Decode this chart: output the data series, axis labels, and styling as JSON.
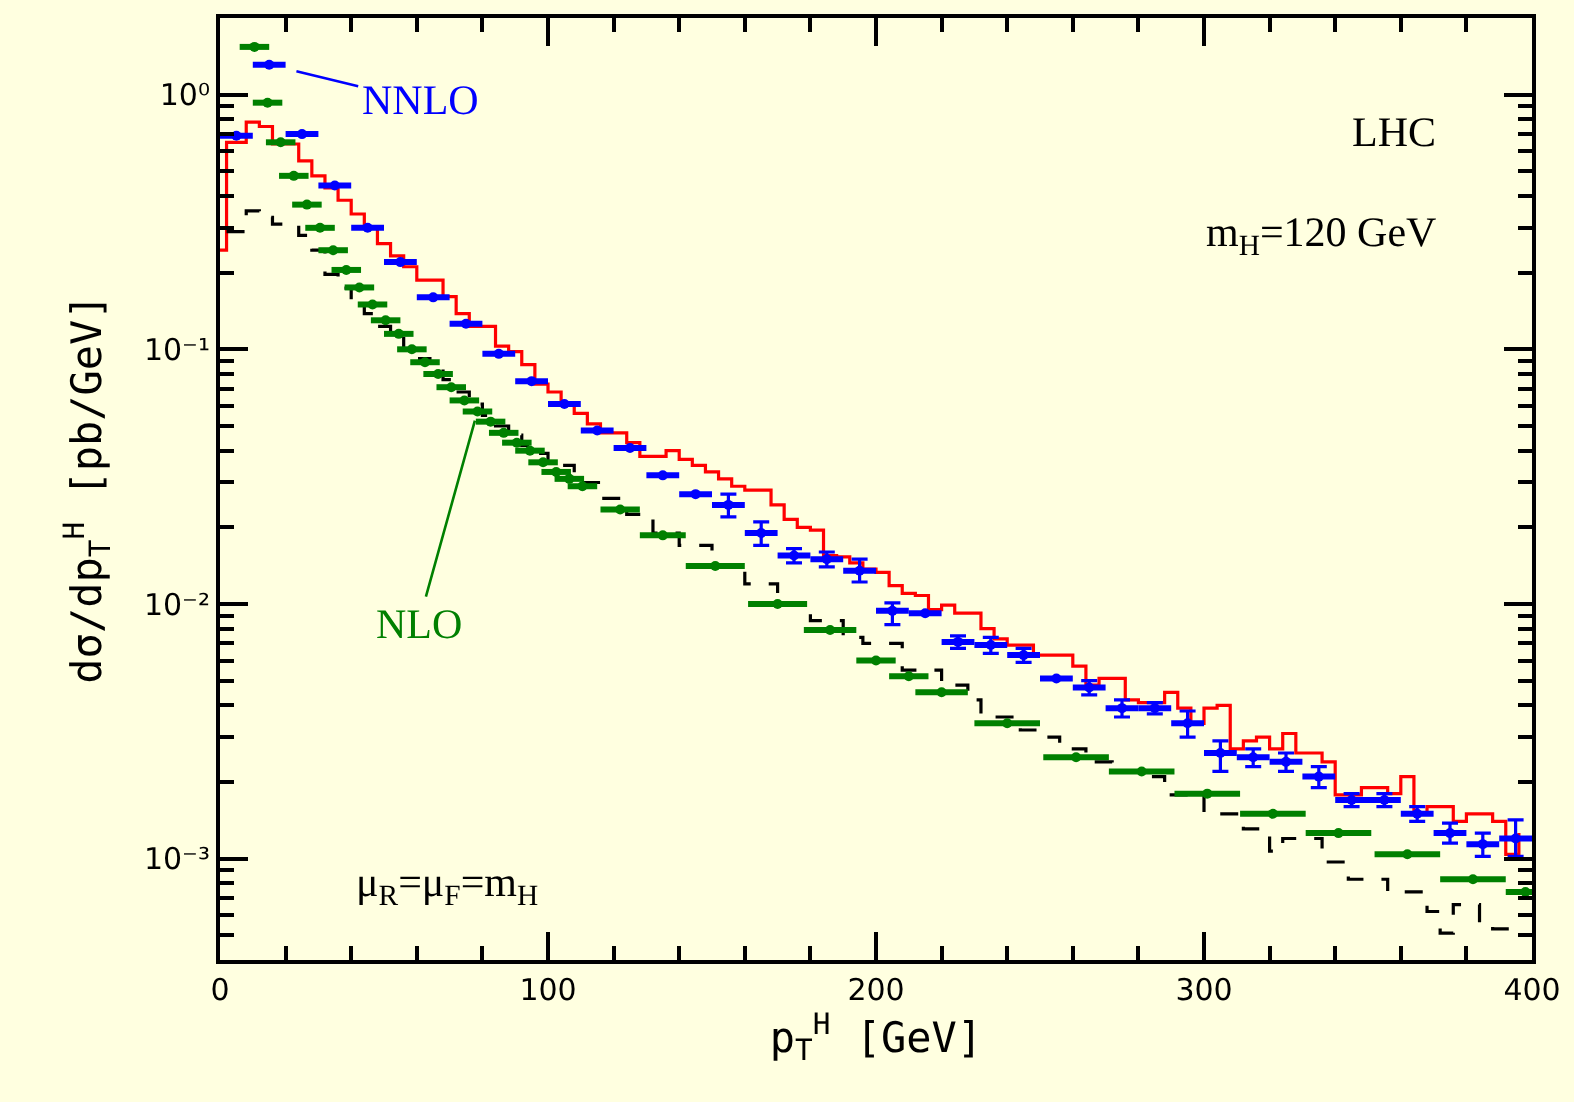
{
  "chart_data": {
    "type": "step",
    "xlabel": "p$_{T}$$^{H}$ [GeV]",
    "ylabel": "dσ/dp$_{T}$$^{H}$ [pb/GeV]",
    "xlim": [
      0,
      400
    ],
    "xticks": [
      0,
      100,
      200,
      300,
      400
    ],
    "ylim": [
      0.0004,
      2
    ],
    "log": true,
    "yticks": [
      {
        "value": 0.001,
        "label": "10⁻³"
      },
      {
        "value": 0.01,
        "label": "10⁻²"
      },
      {
        "value": 0.1,
        "label": "10⁻¹"
      },
      {
        "value": 1,
        "label": "10⁰"
      }
    ],
    "grid": false,
    "annotations": [
      {
        "text": "NNLO",
        "x": 15,
        "y": 1.31
      },
      {
        "text": "NLO",
        "x": 80,
        "y": 0.067
      },
      "LHC",
      "m$_{H}$=120 GeV",
      "μ$_{R}$=μ$_{F}$=m$_{H}$"
    ],
    "series": [
      {
        "type": "scatter",
        "marker": "circle",
        "color": "#0000ff",
        "x": [
          5,
          15,
          25,
          35,
          45,
          55,
          65,
          75,
          85,
          95,
          105,
          115,
          125,
          135,
          145,
          155,
          165,
          175,
          185,
          195,
          205,
          215,
          225,
          235,
          245,
          255,
          265,
          275,
          285,
          295,
          305,
          315,
          325,
          335,
          345,
          355,
          365,
          375,
          385,
          395
        ],
        "values": [
          0.69,
          1.31,
          0.7,
          0.44,
          0.3,
          0.22,
          0.16,
          0.126,
          0.096,
          0.075,
          0.061,
          0.048,
          0.041,
          0.032,
          0.027,
          0.0245,
          0.019,
          0.0155,
          0.015,
          0.0135,
          0.0094,
          0.0092,
          0.0071,
          0.0069,
          0.0063,
          0.0051,
          0.0047,
          0.0039,
          0.0039,
          0.0034,
          0.0026,
          0.0025,
          0.0024,
          0.0021,
          0.0017,
          0.0017,
          0.0015,
          0.00126,
          0.00114,
          0.0012
        ],
        "errors": [
          null,
          null,
          null,
          null,
          null,
          null,
          null,
          null,
          null,
          null,
          null,
          null,
          null,
          null,
          null,
          [
            0.022,
            0.027
          ],
          [
            0.017,
            0.021
          ],
          [
            0.0145,
            0.0165
          ],
          [
            0.014,
            0.016
          ],
          [
            0.0122,
            0.015
          ],
          [
            0.0083,
            0.0101
          ],
          null,
          [
            0.0067,
            0.0075
          ],
          [
            0.0064,
            0.0074
          ],
          [
            0.0059,
            0.0067
          ],
          null,
          [
            0.0044,
            0.005
          ],
          [
            0.0036,
            0.0042
          ],
          [
            0.0037,
            0.0041
          ],
          [
            0.003,
            0.0038
          ],
          [
            0.0022,
            0.0029
          ],
          [
            0.0023,
            0.0027
          ],
          [
            0.0022,
            0.0026
          ],
          [
            0.0019,
            0.0023
          ],
          [
            0.0016,
            0.0018
          ],
          [
            0.0016,
            0.0018
          ],
          [
            0.0014,
            0.0016
          ],
          [
            0.00115,
            0.00138
          ],
          [
            0.00102,
            0.00126
          ],
          [
            0.00102,
            0.00142
          ]
        ],
        "xerrors": [
          5,
          5,
          5,
          5,
          5,
          5,
          5,
          5,
          5,
          5,
          5,
          5,
          5,
          5,
          5,
          5,
          5,
          5,
          5,
          5,
          5,
          5,
          5,
          5,
          5,
          5,
          5,
          5,
          5,
          5,
          5,
          5,
          5,
          5,
          5,
          5,
          5,
          5,
          5,
          5
        ]
      },
      {
        "type": "scatter",
        "marker": "circle",
        "color": "#008000",
        "x": [
          10.5,
          14.5,
          18.5,
          22.5,
          26.5,
          30.5,
          34.5,
          38.5,
          42.5,
          46.5,
          50.5,
          54.5,
          58.5,
          62.5,
          66.5,
          70.5,
          74.5,
          78.5,
          82.5,
          86.5,
          90.5,
          94.5,
          98.5,
          102.5,
          106.5,
          110.5,
          122,
          135,
          151,
          170,
          186,
          200,
          210,
          220,
          240,
          261,
          281,
          301,
          321,
          341,
          362,
          382,
          398
        ],
        "values": [
          1.54,
          0.93,
          0.65,
          0.48,
          0.37,
          0.3,
          0.245,
          0.205,
          0.175,
          0.15,
          0.13,
          0.115,
          0.1,
          0.089,
          0.08,
          0.071,
          0.063,
          0.057,
          0.052,
          0.047,
          0.043,
          0.04,
          0.036,
          0.033,
          0.031,
          0.029,
          0.0235,
          0.0186,
          0.0141,
          0.01,
          0.0079,
          0.006,
          0.0052,
          0.0045,
          0.0034,
          0.0025,
          0.0022,
          0.0018,
          0.0015,
          0.00126,
          0.00104,
          0.00083,
          0.00074
        ],
        "xerrors": [
          4.5,
          4.5,
          4.5,
          4.5,
          4.5,
          4.5,
          4.5,
          4.5,
          4.5,
          4.5,
          4.5,
          4.5,
          4.5,
          4.5,
          4.5,
          4.5,
          4.5,
          4.5,
          4.5,
          4.5,
          4.5,
          4.5,
          4.5,
          4.5,
          4.5,
          4.5,
          6,
          7,
          9,
          9,
          8,
          6,
          6,
          8,
          10,
          10,
          10,
          10,
          10,
          10,
          10,
          10,
          6
        ]
      },
      {
        "line_style": "solid",
        "color": "#ff0000",
        "x": [
          0,
          2,
          8,
          12,
          16,
          24,
          28,
          32,
          36,
          40,
          44,
          48,
          52,
          56,
          60,
          68,
          72,
          76,
          84,
          88,
          92,
          96,
          100,
          104,
          108,
          112,
          116,
          124,
          128,
          136,
          140,
          144,
          148,
          152,
          156,
          160,
          168,
          172,
          176,
          180,
          184,
          188,
          192,
          196,
          200,
          204,
          208,
          212,
          216,
          220,
          224,
          232,
          236,
          240,
          248,
          252,
          260,
          264,
          268,
          276,
          280,
          288,
          292,
          296,
          300,
          304,
          308,
          312,
          316,
          320,
          324,
          328,
          332,
          336,
          340,
          348,
          352,
          356,
          360,
          364,
          368,
          372,
          376,
          380,
          388,
          392,
          396
        ],
        "values": [
          0.245,
          0.65,
          0.78,
          0.75,
          0.64,
          0.55,
          0.48,
          0.43,
          0.385,
          0.34,
          0.3,
          0.26,
          0.233,
          0.211,
          0.187,
          0.161,
          0.138,
          0.123,
          0.103,
          0.098,
          0.087,
          0.073,
          0.068,
          0.061,
          0.056,
          0.051,
          0.047,
          0.043,
          0.038,
          0.04,
          0.037,
          0.035,
          0.033,
          0.031,
          0.029,
          0.028,
          0.0245,
          0.0215,
          0.02,
          0.0195,
          0.0155,
          0.0153,
          0.0145,
          0.0137,
          0.0133,
          0.0118,
          0.011,
          0.0108,
          0.0095,
          0.0099,
          0.0092,
          0.008,
          0.0073,
          0.0069,
          0.0063,
          0.0063,
          0.0057,
          0.0048,
          0.0051,
          0.0042,
          0.0041,
          0.0045,
          0.0039,
          0.0034,
          0.0039,
          0.004,
          0.0027,
          0.0029,
          0.003,
          0.0027,
          0.0031,
          0.0026,
          0.0026,
          0.0024,
          0.00178,
          0.0019,
          0.0019,
          0.0018,
          0.0021,
          0.0015,
          0.0016,
          0.0016,
          0.0014,
          0.0015,
          0.0014,
          0.00104,
          0.00126
        ]
      },
      {
        "line_style": "dashed",
        "color": "#000000",
        "x": [
          2,
          8,
          12,
          16,
          24,
          28,
          32,
          36,
          40,
          44,
          48,
          52,
          56,
          60,
          64,
          68,
          72,
          76,
          80,
          84,
          88,
          92,
          96,
          100,
          108,
          116,
          124,
          132,
          140,
          150,
          160,
          170,
          180,
          190,
          196,
          208,
          220,
          228,
          232,
          236,
          244,
          252,
          256,
          264,
          272,
          280,
          288,
          296,
          300,
          312,
          320,
          324,
          336,
          344,
          356,
          368,
          372,
          376,
          384,
          388,
          396
        ],
        "values": [
          0.29,
          0.35,
          0.33,
          0.31,
          0.28,
          0.245,
          0.197,
          0.174,
          0.155,
          0.138,
          0.123,
          0.113,
          0.1,
          0.092,
          0.085,
          0.076,
          0.068,
          0.061,
          0.055,
          0.05,
          0.046,
          0.042,
          0.039,
          0.035,
          0.03,
          0.026,
          0.0225,
          0.019,
          0.017,
          0.0142,
          0.012,
          0.01,
          0.0086,
          0.0074,
          0.007,
          0.0055,
          0.0048,
          0.0042,
          0.0037,
          0.0036,
          0.0032,
          0.003,
          0.0027,
          0.0024,
          0.0022,
          0.0021,
          0.00178,
          0.0018,
          0.0015,
          0.00131,
          0.00107,
          0.0012,
          0.00097,
          0.00083,
          0.00074,
          0.00062,
          0.00051,
          0.00066,
          0.00056,
          0.00053,
          0.00056
        ]
      }
    ]
  }
}
